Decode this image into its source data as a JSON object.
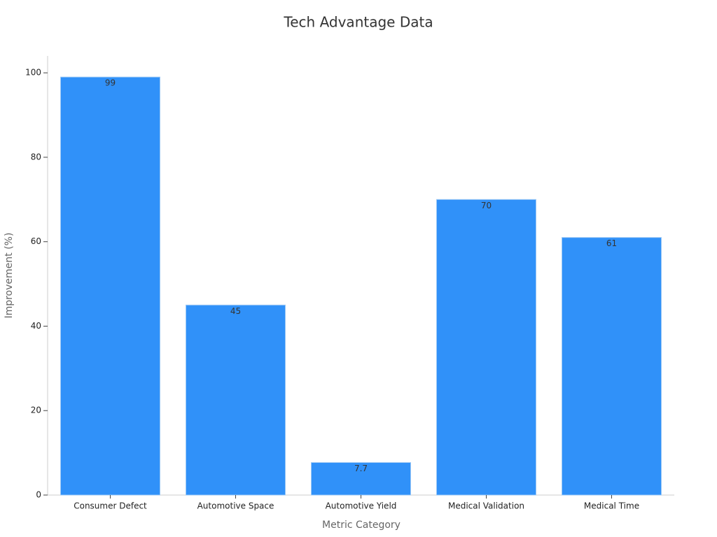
{
  "chart_data": {
    "type": "bar",
    "title": "Tech Advantage Data",
    "x_label": "Metric Category",
    "y_label": "Improvement (%)",
    "categories": [
      "Consumer Defect",
      "Automotive Space",
      "Automotive Yield",
      "Medical Validation",
      "Medical Time"
    ],
    "values": [
      99,
      45,
      7.7,
      70,
      61
    ],
    "color": "#3091f9",
    "ylim": [
      0,
      104
    ],
    "yticks": [
      0,
      20,
      40,
      60,
      80,
      100
    ],
    "grid": false
  }
}
